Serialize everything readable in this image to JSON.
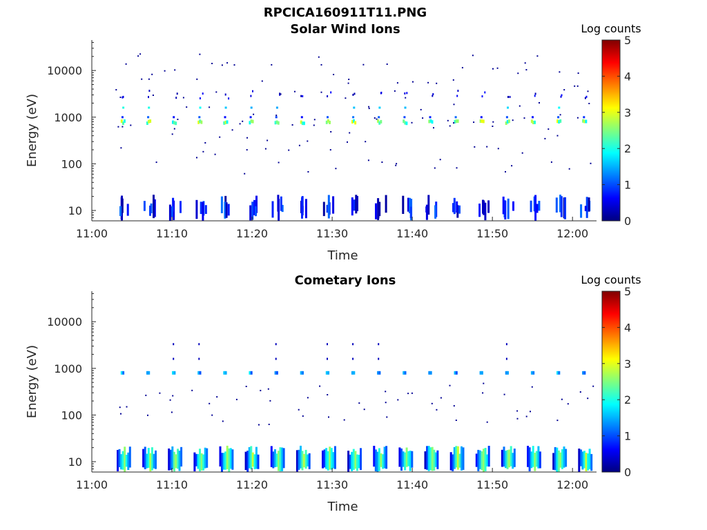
{
  "figure": {
    "title": "RPCICA160911T11.PNG"
  },
  "colors": {
    "colormap": [
      "#00007f",
      "#0000ff",
      "#007fff",
      "#00ffff",
      "#7fff7f",
      "#ffff00",
      "#ff7f00",
      "#ff0000",
      "#7f0000"
    ]
  },
  "chart_data": [
    {
      "type": "heatmap",
      "title": "Solar Wind Ions",
      "xlabel": "Time",
      "ylabel": "Energy (eV)",
      "x_range": [
        "11:00",
        "12:03"
      ],
      "x_ticks": [
        "11:00",
        "11:10",
        "11:20",
        "11:30",
        "11:40",
        "11:50",
        "12:00"
      ],
      "y_scale": "log",
      "y_range": [
        6,
        45000
      ],
      "y_ticks": [
        10,
        100,
        1000,
        10000
      ],
      "y_tick_labels": [
        "10",
        "100",
        "1000",
        "10000"
      ],
      "colorbar": {
        "label": "Log counts",
        "range": [
          0,
          5
        ],
        "ticks": [
          "0",
          "1",
          "2",
          "3",
          "4",
          "5"
        ]
      },
      "scan_start_minutes": [
        3.6,
        6.8,
        10.0,
        13.2,
        16.4,
        19.6,
        22.8,
        26.0,
        29.2,
        32.4,
        35.6,
        38.8,
        42.0,
        45.2,
        48.4,
        51.6,
        54.8,
        58.0,
        61.2
      ],
      "features": [
        {
          "name": "solar wind peak",
          "energy_ev": 800,
          "log_counts_max": 3.0
        },
        {
          "name": "secondary peak",
          "energy_ev": 1600,
          "log_counts_max": 2.5
        },
        {
          "name": "low-energy band",
          "energy_ev_range": [
            6,
            22
          ],
          "log_counts_max": 1.2
        },
        {
          "name": "sparse background counts",
          "energy_ev_range": [
            60,
            25000
          ],
          "log_counts_max": 0.4
        }
      ]
    },
    {
      "type": "heatmap",
      "title": "Cometary Ions",
      "xlabel": "Time",
      "ylabel": "Energy (eV)",
      "x_range": [
        "11:00",
        "12:03"
      ],
      "x_ticks": [
        "11:00",
        "11:10",
        "11:20",
        "11:30",
        "11:40",
        "11:50",
        "12:00"
      ],
      "y_scale": "log",
      "y_range": [
        6,
        45000
      ],
      "y_ticks": [
        10,
        100,
        1000,
        10000
      ],
      "y_tick_labels": [
        "10",
        "100",
        "1000",
        "10000"
      ],
      "colorbar": {
        "label": "Log counts",
        "range": [
          0,
          5
        ],
        "ticks": [
          "0",
          "1",
          "2",
          "3",
          "4",
          "5"
        ]
      },
      "scan_start_minutes": [
        3.6,
        6.8,
        10.0,
        13.2,
        16.4,
        19.6,
        22.8,
        26.0,
        29.2,
        32.4,
        35.6,
        38.8,
        42.0,
        45.2,
        48.4,
        51.6,
        54.8,
        58.0,
        61.2
      ],
      "features": [
        {
          "name": "low-energy cometary band",
          "energy_ev_range": [
            6,
            22
          ],
          "log_counts_max": 2.7
        },
        {
          "name": "peak near 800 eV",
          "energy_ev": 800,
          "log_counts_max": 1.8
        },
        {
          "name": "sparse background counts",
          "energy_ev_range": [
            60,
            9000
          ],
          "log_counts_max": 0.3
        }
      ]
    }
  ]
}
